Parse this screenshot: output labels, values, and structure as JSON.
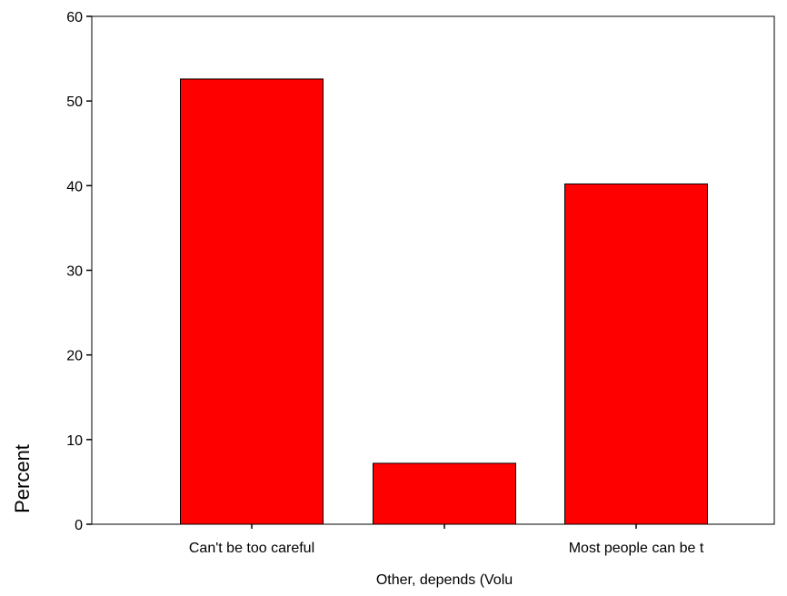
{
  "chart_data": {
    "type": "bar",
    "title": "",
    "xlabel": "",
    "ylabel": "Percent",
    "categories": [
      "Can't be too careful",
      "Other, depends (Volu",
      "Most people can be t"
    ],
    "values": [
      52.6,
      7.2,
      40.2
    ],
    "ylim": [
      0,
      60
    ],
    "yticks": [
      0,
      10,
      20,
      30,
      40,
      50,
      60
    ],
    "bar_color": "#ff0000",
    "bar_edge_color": "#000000",
    "grid": false,
    "legend": "none"
  }
}
